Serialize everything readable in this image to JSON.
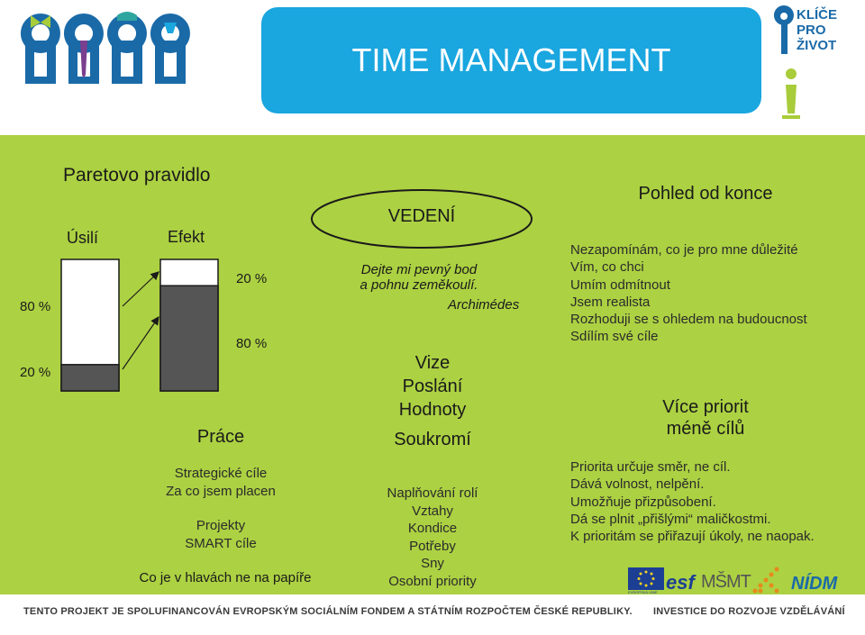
{
  "header": {
    "title": "TIME MANAGEMENT",
    "brand_lines": [
      "KLÍČE",
      "PRO",
      "ŽIVOT"
    ]
  },
  "pareto": {
    "title": "Paretovo pravidlo",
    "col_effort": "Úsilí",
    "col_effect": "Efekt",
    "left_top_pct": "80 %",
    "left_bottom_pct": "20 %",
    "right_top_pct": "20 %",
    "right_bottom_pct": "80 %",
    "effort_fill_fraction": 0.2,
    "effect_fill_fraction": 0.8
  },
  "work": {
    "heading": "Práce",
    "lines": [
      "Strategické cíle",
      "Za co jsem placen"
    ],
    "lines2": [
      "Projekty",
      "SMART cíle"
    ],
    "footer_line": "Co je v hlavách ne na papíře"
  },
  "leadership": {
    "heading": "VEDENÍ",
    "quote_lines": [
      "Dejte mi pevný bod",
      "a pohnu zeměkoulí."
    ],
    "quote_author": "Archimédes",
    "values": [
      "Vize",
      "Poslání",
      "Hodnoty"
    ]
  },
  "private": {
    "heading": "Soukromí",
    "lines": [
      "Naplňování rolí",
      "Vztahy",
      "Kondice",
      "Potřeby",
      "Sny",
      "Osobní priority"
    ]
  },
  "end_view": {
    "heading": "Pohled od konce",
    "lines": [
      "Nezapomínám, co je pro mne důležité",
      "Vím, co chci",
      "Umím odmítnout",
      "Jsem realista",
      "Rozhoduji se s ohledem na budoucnost",
      "Sdílím své cíle"
    ]
  },
  "priorities": {
    "heading_lines": [
      "Více priorit",
      "méně cílů"
    ],
    "lines": [
      "Priorita určuje směr, ne cíl.",
      "Dává volnost, nelpění.",
      "Umožňuje přizpůsobení.",
      "Dá se plnit „přišlými“ maličkostmi.",
      "K prioritám se přiřazují úkoly, ne naopak."
    ]
  },
  "logos": {
    "msmt": "MŠMT",
    "nidm": "NÍDM",
    "eu": "EVROPSKÁ UNIE",
    "esf": "esf"
  },
  "footer": {
    "left": "TENTO PROJEKT JE SPOLUFINANCOVÁN EVROPSKÝM SOCIÁLNÍM FONDEM A STÁTNÍM ROZPOČTEM ČESKÉ REPUBLIKY.",
    "right": "INVESTICE DO ROZVOJE VZDĚLÁVÁNÍ"
  },
  "colors": {
    "panel_green": "#acd142",
    "title_blue": "#1aa6df",
    "bar_fill": "#555555",
    "keyhole_blue": "#1a6aa8"
  }
}
